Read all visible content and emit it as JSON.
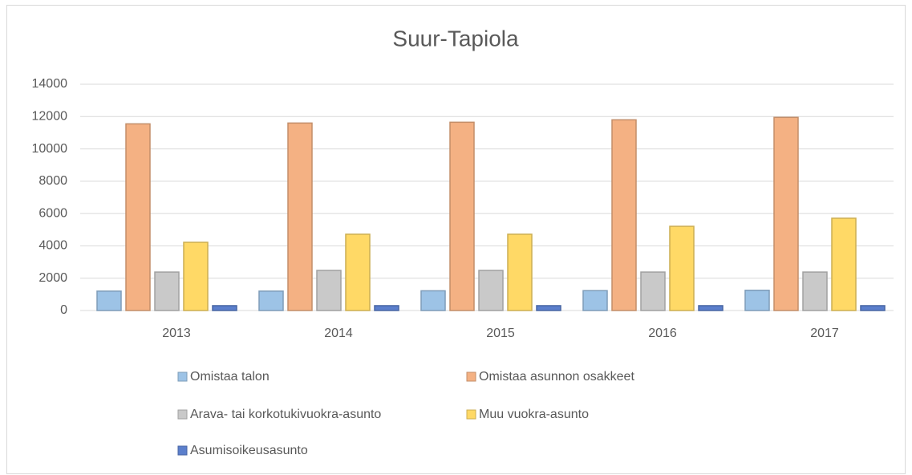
{
  "chart_data": {
    "type": "bar",
    "title": "Suur-Tapiola",
    "categories": [
      "2013",
      "2014",
      "2015",
      "2016",
      "2017"
    ],
    "series": [
      {
        "name": "Omistaa talon",
        "color": "#9dc3e6",
        "values": [
          1200,
          1200,
          1220,
          1230,
          1250
        ]
      },
      {
        "name": "Omistaa asunnon osakkeet",
        "color": "#f4b183",
        "values": [
          11550,
          11600,
          11650,
          11800,
          11950
        ]
      },
      {
        "name": "Arava- tai korkotukivuokra-asunto",
        "color": "#c9c9c9",
        "values": [
          2380,
          2480,
          2480,
          2380,
          2380
        ]
      },
      {
        "name": "Muu vuokra-asunto",
        "color": "#ffd966",
        "values": [
          4220,
          4720,
          4720,
          5210,
          5710
        ]
      },
      {
        "name": "Asumisoikeusasunto",
        "color": "#5b7fcc",
        "values": [
          300,
          300,
          300,
          300,
          300
        ]
      }
    ],
    "ylim": [
      0,
      14000
    ],
    "yticks": [
      0,
      2000,
      4000,
      6000,
      8000,
      10000,
      12000,
      14000
    ],
    "grid": true,
    "legend": "bottom"
  }
}
